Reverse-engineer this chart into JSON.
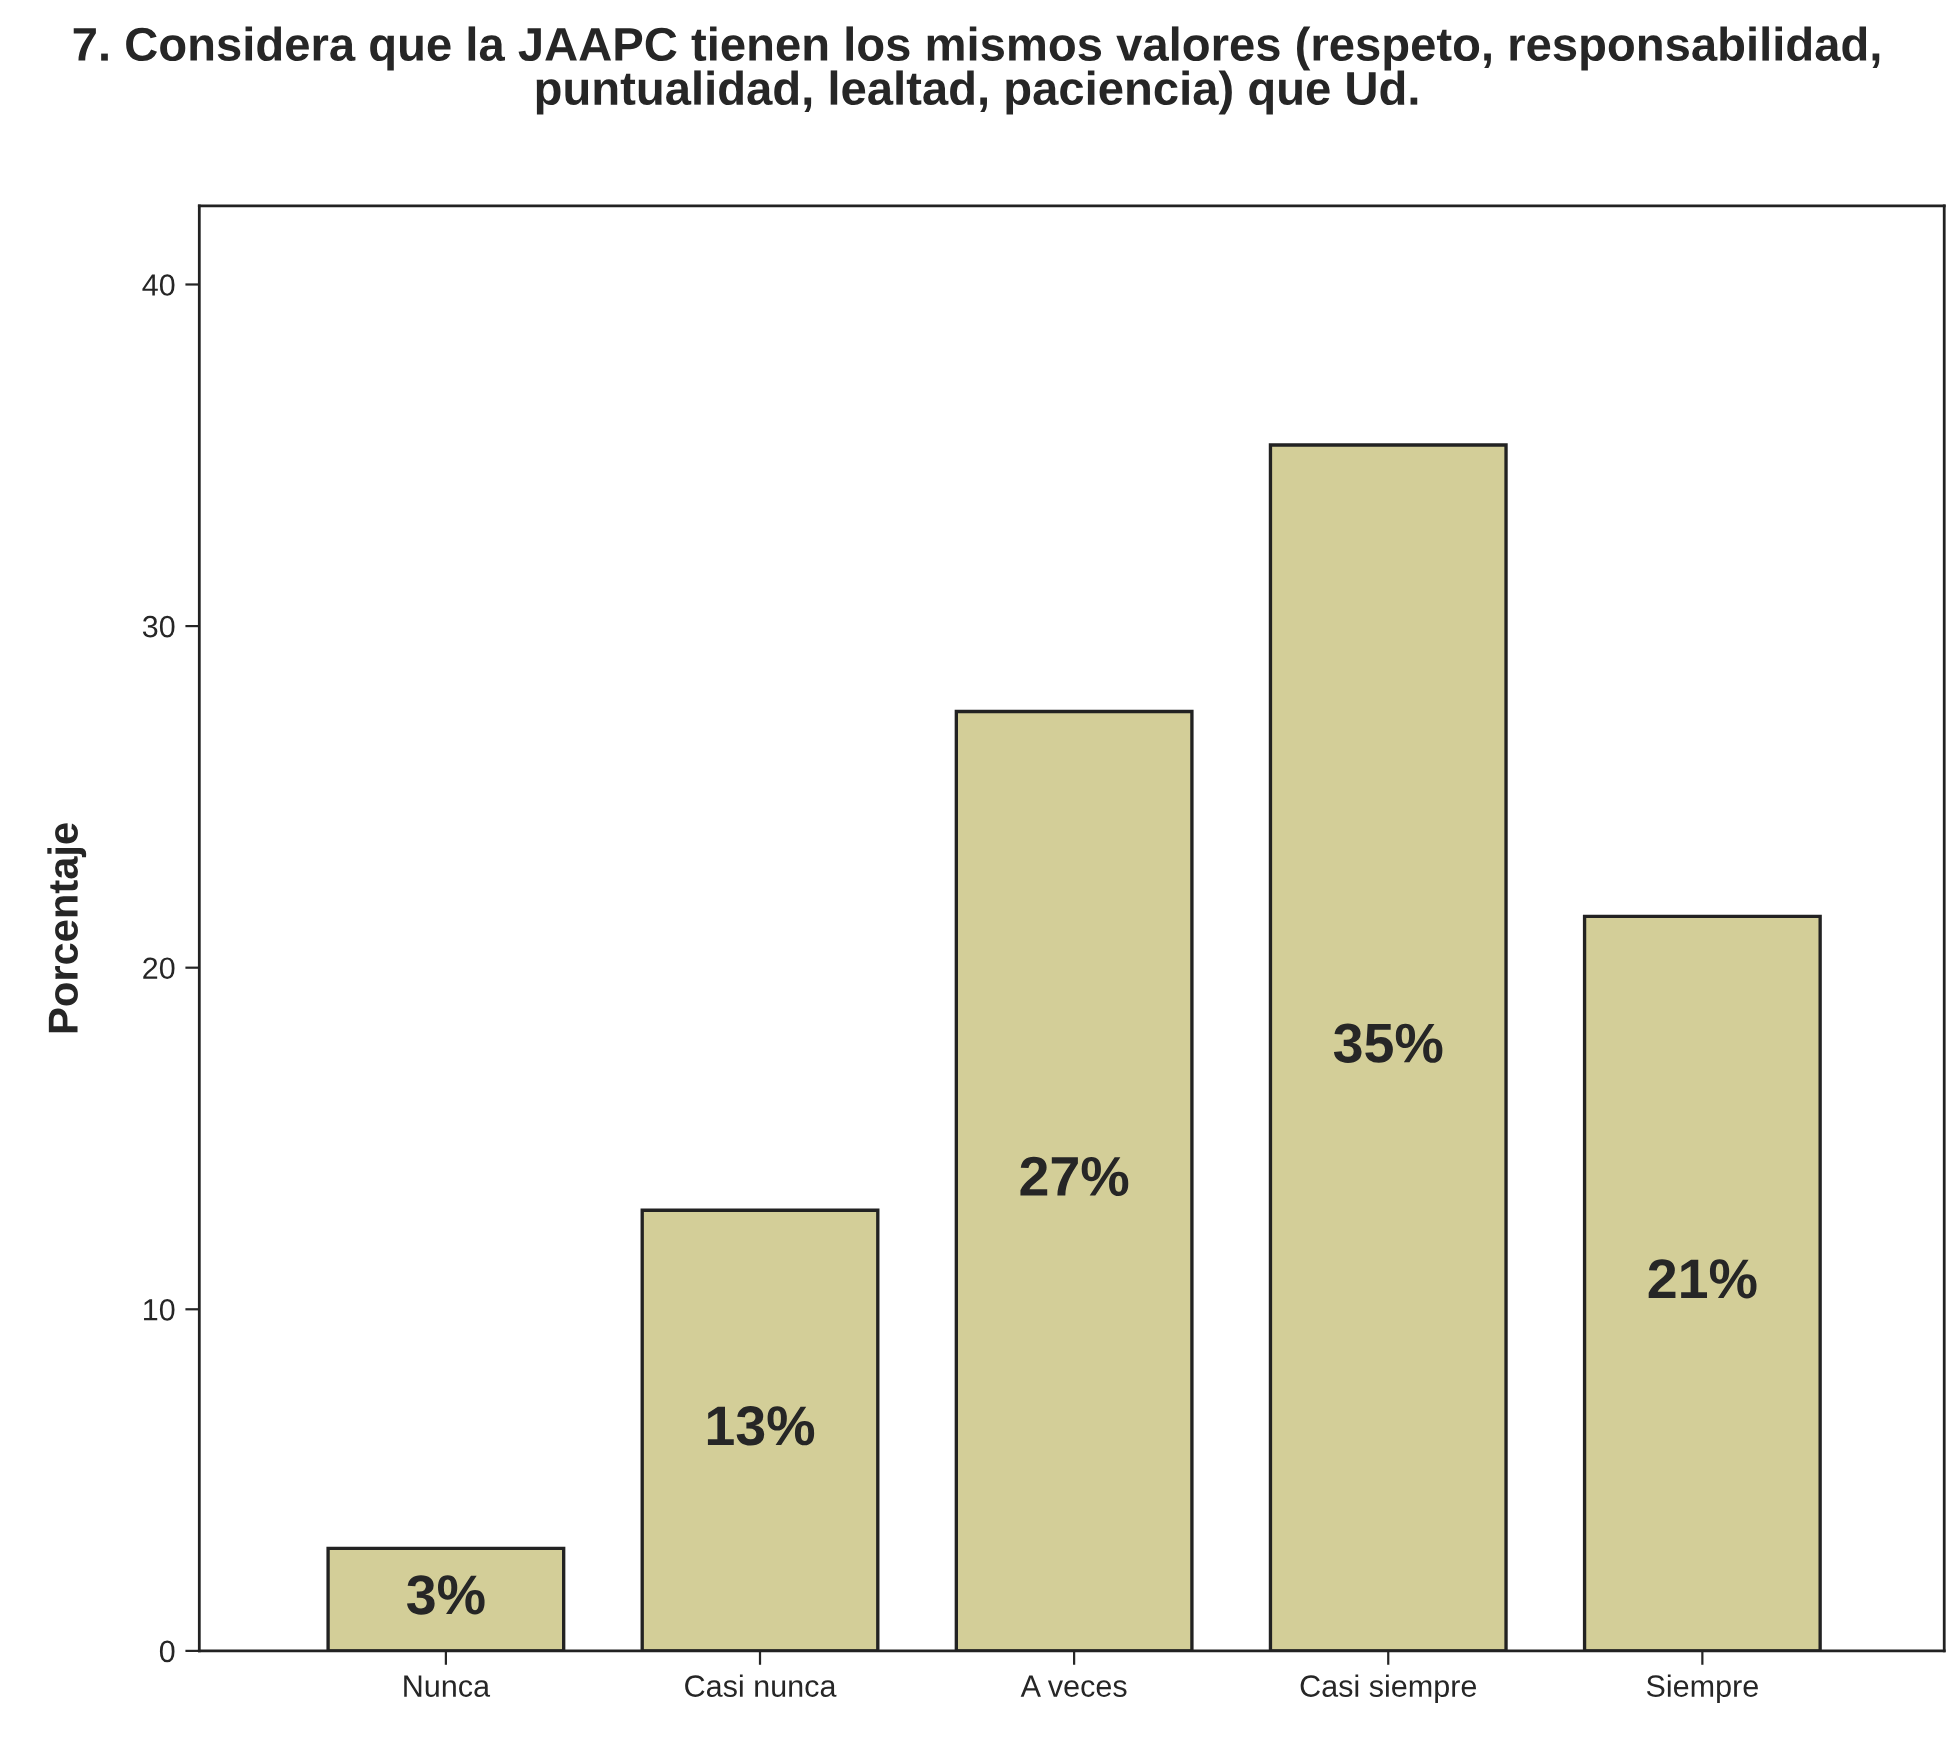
{
  "chart_data": {
    "type": "bar",
    "title": "7. Considera que la JAAPC tienen los mismos valores (respeto, responsabilidad,\npuntualidad, lealtad, paciencia) que Ud.",
    "ylabel": "Porcentaje",
    "categories": [
      "Nunca",
      "Casi nunca",
      "A veces",
      "Casi siempre",
      "Siempre"
    ],
    "values": [
      3.0,
      12.9,
      27.5,
      35.3,
      21.5
    ],
    "value_labels": [
      "3%",
      "13%",
      "27%",
      "35%",
      "21%"
    ],
    "color": "#d3ce98",
    "ylim": [
      0,
      42.3
    ],
    "yticks": [
      0,
      10,
      20,
      30,
      40
    ],
    "grid": false
  }
}
